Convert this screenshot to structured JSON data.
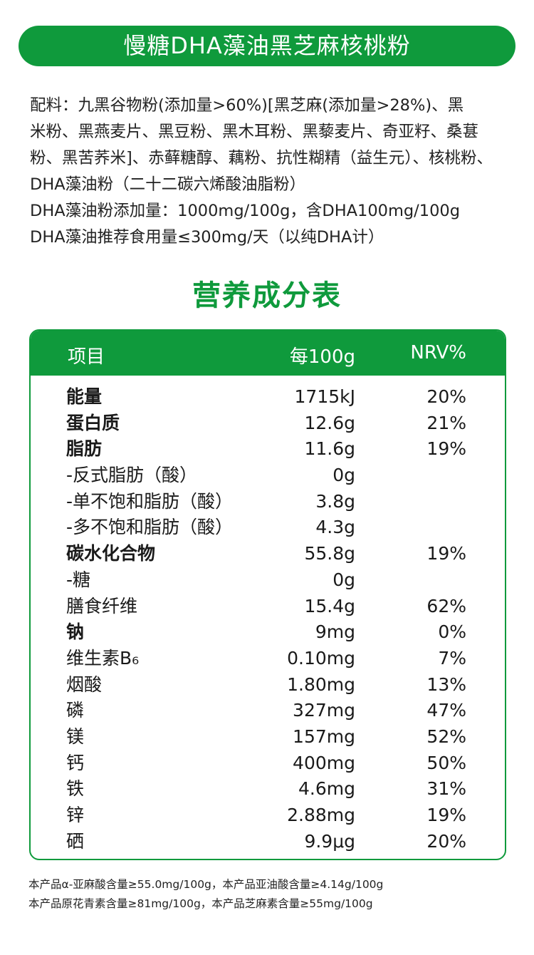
{
  "title": "慢糖DHA藻油黑芝麻核桃粉",
  "ingredients": [
    "配料：九黑谷物粉(添加量>60%)[黑芝麻(添加量>28%)、黑",
    "米粉、黑燕麦片、黑豆粉、黑木耳粉、黑藜麦片、奇亚籽、桑葚",
    "粉、黑苦荞米]、赤藓糖醇、藕粉、抗性糊精（益生元）、核桃粉、",
    "DHA藻油粉（二十二碳六烯酸油脂粉）",
    "DHA藻油粉添加量：1000mg/100g，含DHA100mg/100g",
    "DHA藻油推荐食用量≤300mg/天（以纯DHA计）"
  ],
  "nutrition_title": "营养成分表",
  "table": {
    "headers": {
      "item": "项目",
      "per100g": "每100g",
      "nrv": "NRV%"
    },
    "rows": [
      {
        "name": "能量",
        "value": "1715kJ",
        "nrv": "20%",
        "bold": true
      },
      {
        "name": "蛋白质",
        "value": "12.6g",
        "nrv": "21%",
        "bold": true
      },
      {
        "name": "脂肪",
        "value": "11.6g",
        "nrv": "19%",
        "bold": true
      },
      {
        "name": "-反式脂肪（酸）",
        "value": "0g",
        "nrv": "",
        "bold": false
      },
      {
        "name": "-单不饱和脂肪（酸）",
        "value": "3.8g",
        "nrv": "",
        "bold": false
      },
      {
        "name": "-多不饱和脂肪（酸）",
        "value": "4.3g",
        "nrv": "",
        "bold": false
      },
      {
        "name": "碳水化合物",
        "value": "55.8g",
        "nrv": "19%",
        "bold": true
      },
      {
        "name": "-糖",
        "value": "0g",
        "nrv": "",
        "bold": false
      },
      {
        "name": "膳食纤维",
        "value": "15.4g",
        "nrv": "62%",
        "bold": false
      },
      {
        "name": "钠",
        "value": "9mg",
        "nrv": "0%",
        "bold": true
      },
      {
        "name": "维生素B₆",
        "value": "0.10mg",
        "nrv": "7%",
        "bold": false
      },
      {
        "name": "烟酸",
        "value": "1.80mg",
        "nrv": "13%",
        "bold": false
      },
      {
        "name": "磷",
        "value": "327mg",
        "nrv": "47%",
        "bold": false
      },
      {
        "name": "镁",
        "value": "157mg",
        "nrv": "52%",
        "bold": false
      },
      {
        "name": "钙",
        "value": "400mg",
        "nrv": "50%",
        "bold": false
      },
      {
        "name": "铁",
        "value": "4.6mg",
        "nrv": "31%",
        "bold": false
      },
      {
        "name": "锌",
        "value": "2.88mg",
        "nrv": "19%",
        "bold": false
      },
      {
        "name": "硒",
        "value": "9.9μg",
        "nrv": "20%",
        "bold": false
      }
    ]
  },
  "footnotes": [
    "本产品α-亚麻酸含量≥55.0mg/100g，本产品亚油酸含量≥4.14g/100g",
    "本产品原花青素含量≥81mg/100g，本产品芝麻素含量≥55mg/100g"
  ],
  "colors": {
    "brand_green": "#0f9a3c"
  }
}
